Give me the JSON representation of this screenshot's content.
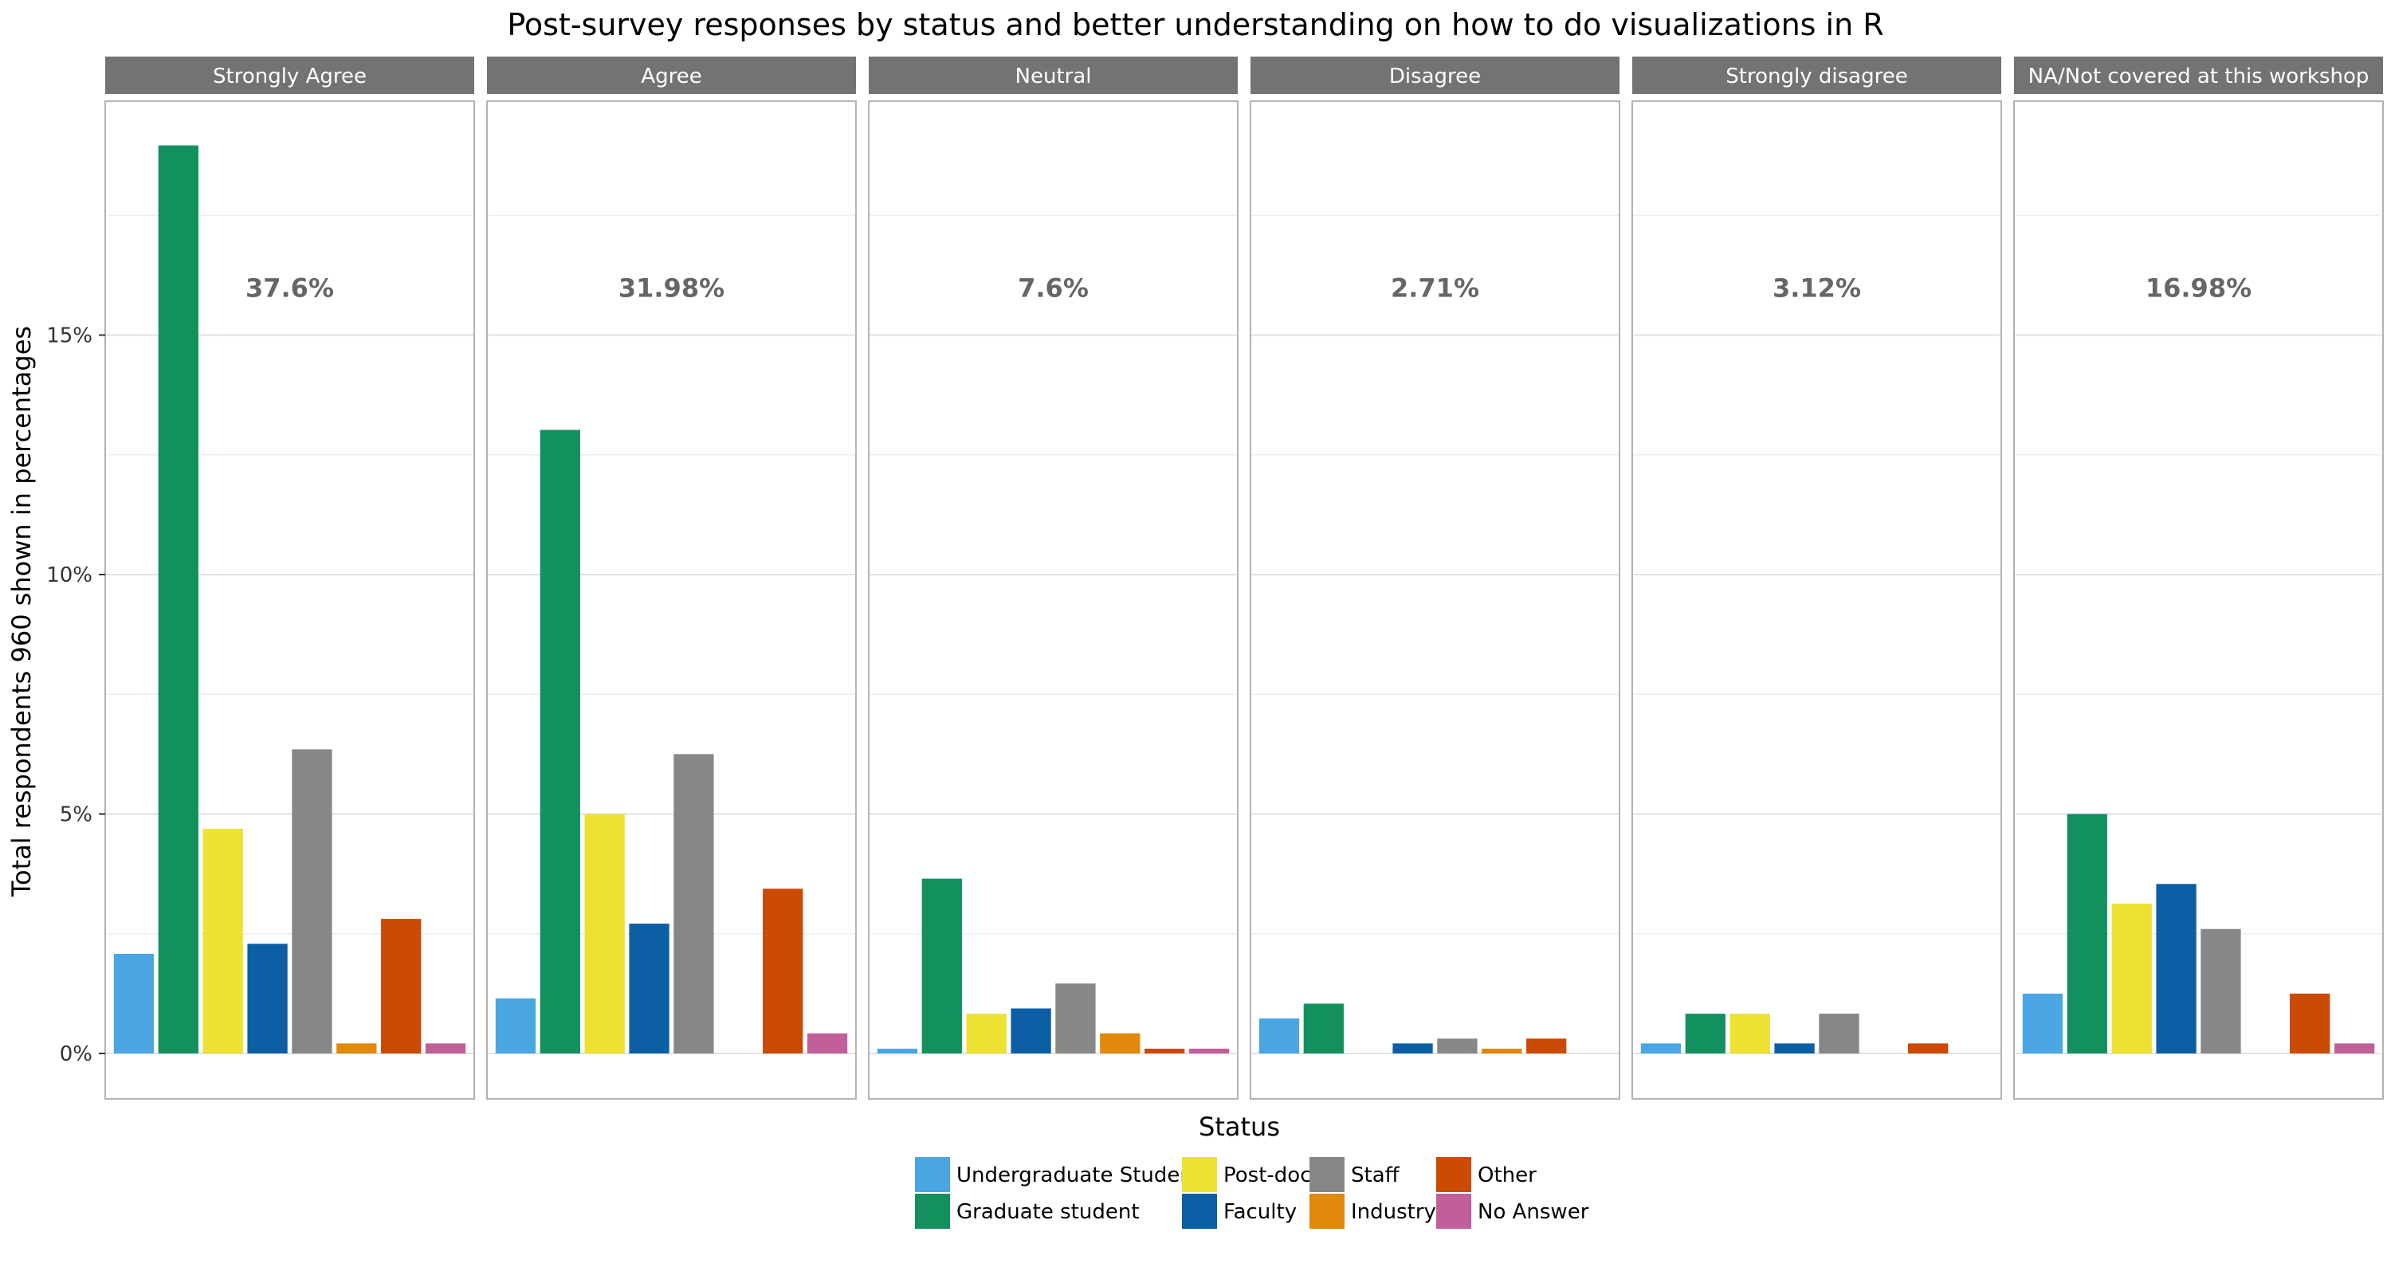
{
  "chart_data": {
    "type": "bar",
    "title": "Post-survey responses by status and better understanding on how to do visualizations in R",
    "xlabel": "Status",
    "ylabel": "Total respondents 960 shown in percentages",
    "ylim": [
      -0.9,
      19.6
    ],
    "yticks": [
      0,
      5,
      10,
      15
    ],
    "ytick_labels": [
      "0%",
      "5%",
      "10%",
      "15%"
    ],
    "grid": true,
    "legend_position": "bottom",
    "categories": [
      "Undergraduate Student",
      "Graduate student",
      "Post-doc",
      "Faculty",
      "Staff",
      "Industry",
      "Other",
      "No Answer"
    ],
    "colors": [
      "#4AA6E3",
      "#12915F",
      "#EDE131",
      "#0C5FA5",
      "#878787",
      "#E1890A",
      "#CB4A04",
      "#C25F99"
    ],
    "legend_layout_order": [
      "Undergraduate Student",
      "Graduate student",
      "Post-doc",
      "Faculty",
      "Staff",
      "Industry",
      "Other",
      "No Answer"
    ],
    "facets": [
      {
        "name": "Strongly Agree",
        "total_label": "37.6%",
        "values": [
          2.08,
          18.96,
          4.69,
          2.29,
          6.35,
          0.21,
          2.81,
          0.21
        ]
      },
      {
        "name": "Agree",
        "total_label": "31.98%",
        "values": [
          1.15,
          13.02,
          5.0,
          2.71,
          6.25,
          null,
          3.44,
          0.42
        ]
      },
      {
        "name": "Neutral",
        "total_label": "7.6%",
        "values": [
          0.1,
          3.65,
          0.83,
          0.94,
          1.46,
          0.42,
          0.1,
          0.1
        ]
      },
      {
        "name": "Disagree",
        "total_label": "2.71%",
        "values": [
          0.73,
          1.04,
          null,
          0.21,
          0.31,
          0.1,
          0.31,
          null
        ]
      },
      {
        "name": "Strongly disagree",
        "total_label": "3.12%",
        "values": [
          0.21,
          0.83,
          0.83,
          0.21,
          0.83,
          null,
          0.21,
          null
        ]
      },
      {
        "name": "NA/Not covered at this workshop",
        "total_label": "16.98%",
        "values": [
          1.25,
          5.0,
          3.13,
          3.54,
          2.6,
          null,
          1.25,
          0.21
        ]
      }
    ]
  }
}
